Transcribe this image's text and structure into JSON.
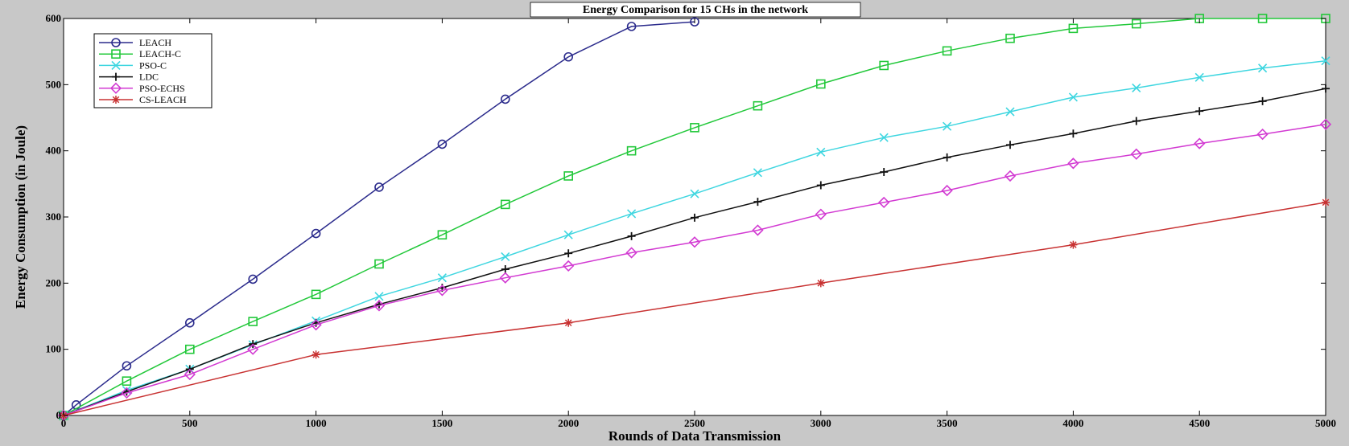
{
  "chart_data": {
    "type": "line",
    "title": "Energy Comparison for 15 CHs in the network",
    "xlabel": "Rounds of Data Transmission",
    "ylabel": "Energy Consumption (in Joule)",
    "xlim": [
      0,
      5000
    ],
    "ylim": [
      0,
      600
    ],
    "xticks": [
      0,
      500,
      1000,
      1500,
      2000,
      2500,
      3000,
      3500,
      4000,
      4500,
      5000
    ],
    "yticks": [
      0,
      100,
      200,
      300,
      400,
      500,
      600
    ],
    "grid": false,
    "legend_position": "top-left",
    "series": [
      {
        "name": "LEACH",
        "color": "#2b2b8c",
        "marker": "circle",
        "x": [
          0,
          50,
          250,
          500,
          750,
          1000,
          1250,
          1500,
          1750,
          2000,
          2250,
          2500
        ],
        "y": [
          0,
          16,
          75,
          140,
          206,
          275,
          345,
          410,
          478,
          542,
          588,
          595
        ]
      },
      {
        "name": "LEACH-C",
        "color": "#22c83a",
        "marker": "square",
        "x": [
          0,
          250,
          500,
          750,
          1000,
          1250,
          1500,
          1750,
          2000,
          2250,
          2500,
          2750,
          3000,
          3250,
          3500,
          3750,
          4000,
          4250,
          4500,
          4750,
          5000
        ],
        "y": [
          0,
          52,
          100,
          142,
          183,
          229,
          273,
          319,
          362,
          400,
          435,
          468,
          501,
          529,
          551,
          570,
          585,
          592,
          600,
          600,
          600
        ]
      },
      {
        "name": "PSO-C",
        "color": "#3fd6e0",
        "marker": "x",
        "x": [
          0,
          250,
          500,
          750,
          1000,
          1250,
          1500,
          1750,
          2000,
          2250,
          2500,
          2750,
          3000,
          3250,
          3500,
          3750,
          4000,
          4250,
          4500,
          4750,
          5000
        ],
        "y": [
          0,
          38,
          70,
          107,
          143,
          180,
          208,
          240,
          273,
          305,
          335,
          367,
          398,
          420,
          437,
          459,
          481,
          495,
          511,
          525,
          536
        ]
      },
      {
        "name": "LDC",
        "color": "#111111",
        "marker": "plus",
        "x": [
          0,
          250,
          500,
          750,
          1000,
          1250,
          1500,
          1750,
          2000,
          2250,
          2500,
          2750,
          3000,
          3250,
          3500,
          3750,
          4000,
          4250,
          4500,
          4750,
          5000
        ],
        "y": [
          0,
          36,
          70,
          108,
          140,
          168,
          193,
          221,
          245,
          271,
          299,
          323,
          348,
          368,
          390,
          409,
          426,
          445,
          460,
          475,
          494
        ]
      },
      {
        "name": "PSO-ECHS",
        "color": "#d23ad2",
        "marker": "diamond",
        "x": [
          0,
          250,
          500,
          750,
          1000,
          1250,
          1500,
          1750,
          2000,
          2250,
          2500,
          2750,
          3000,
          3250,
          3500,
          3750,
          4000,
          4250,
          4500,
          4750,
          5000
        ],
        "y": [
          0,
          34,
          62,
          100,
          137,
          166,
          189,
          208,
          226,
          246,
          262,
          280,
          304,
          322,
          340,
          362,
          381,
          395,
          411,
          425,
          440
        ]
      },
      {
        "name": "CS-LEACH",
        "color": "#c83232",
        "marker": "star",
        "x": [
          0,
          1000,
          2000,
          3000,
          4000,
          5000
        ],
        "y": [
          0,
          92,
          140,
          200,
          258,
          322
        ]
      }
    ]
  }
}
